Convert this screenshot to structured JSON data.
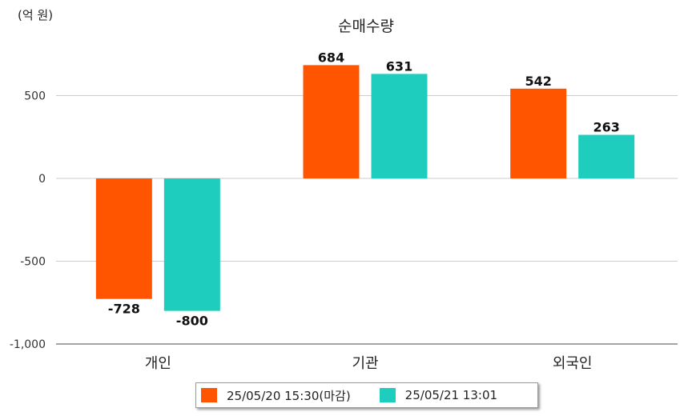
{
  "chart_data": {
    "type": "bar",
    "title": "순매수량",
    "unit_label": "(억 원)",
    "categories": [
      "개인",
      "기관",
      "외국인"
    ],
    "series": [
      {
        "name": "25/05/20 15:30(마감)",
        "color": "#ff5400",
        "values": [
          -728,
          684,
          542
        ]
      },
      {
        "name": "25/05/21 13:01",
        "color": "#1ecdbd",
        "values": [
          -800,
          631,
          263
        ]
      }
    ],
    "yticks": [
      500,
      0,
      -500,
      -1000
    ],
    "ytick_labels": [
      "500",
      "0",
      "-500",
      "-1,000"
    ],
    "ylim": [
      -1000,
      500
    ],
    "grid": true,
    "legend_position": "bottom"
  }
}
